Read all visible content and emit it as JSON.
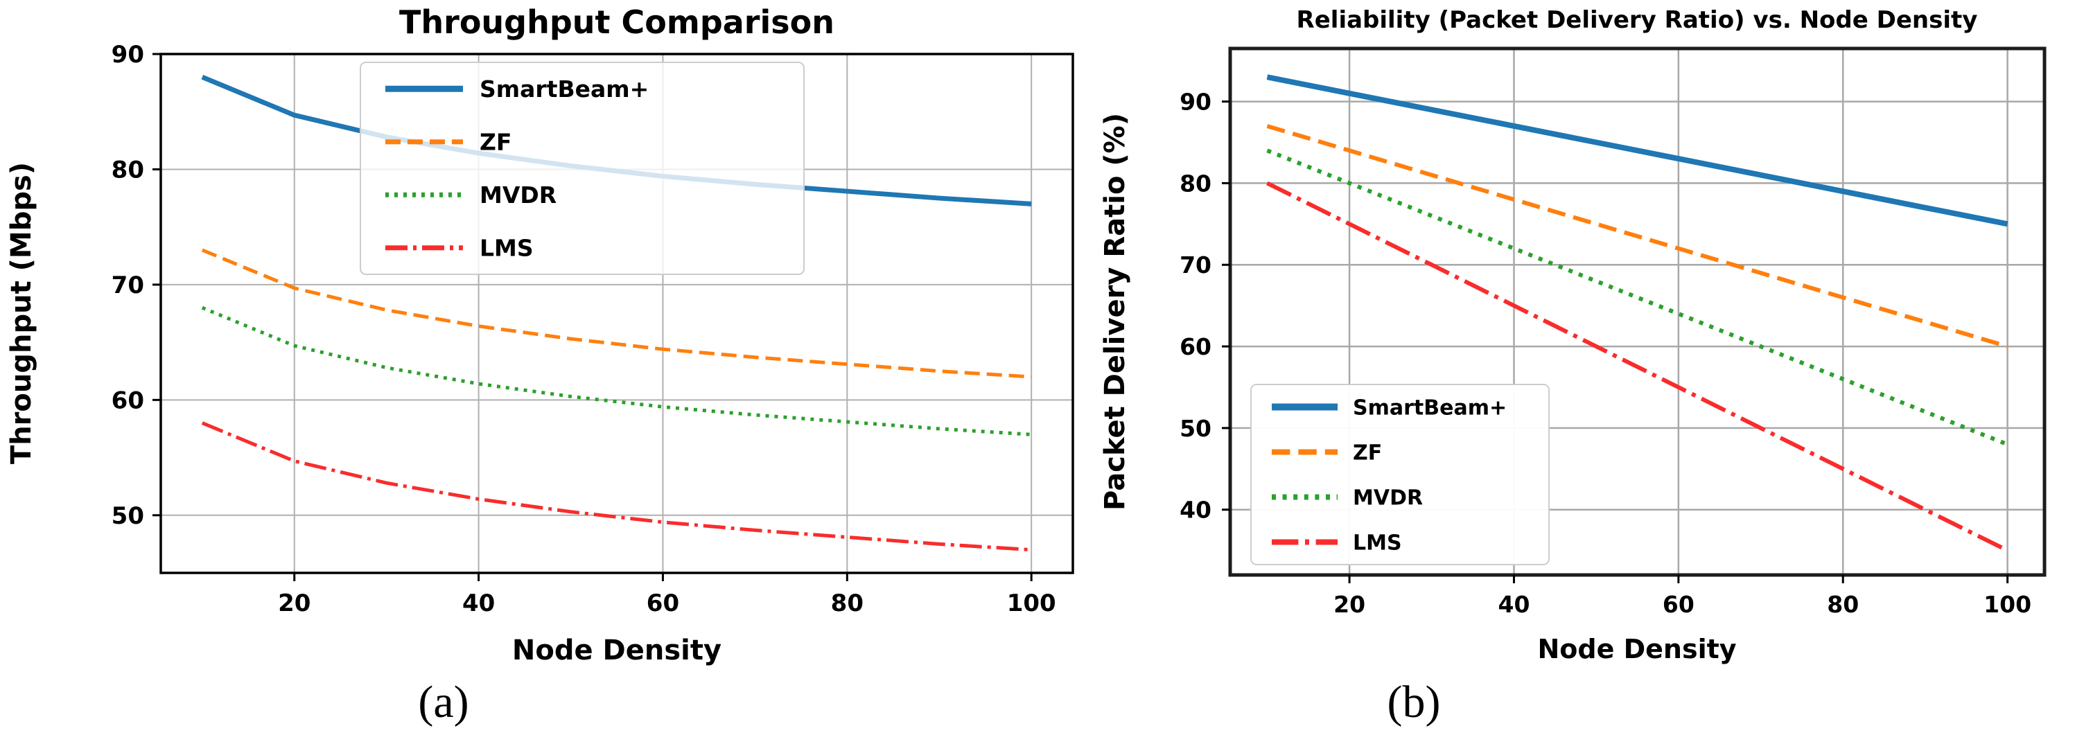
{
  "figure": {
    "background": "#ffffff",
    "captions": {
      "a": "(a)",
      "b": "(b)"
    }
  },
  "chart_data": [
    {
      "id": "throughput",
      "type": "line",
      "title": "Throughput Comparison",
      "xlabel": "Node Density",
      "ylabel": "Throughput (Mbps)",
      "caption": "(a)",
      "x": [
        10,
        20,
        30,
        40,
        50,
        60,
        70,
        80,
        90,
        100
      ],
      "xlim": [
        5.5,
        104.5
      ],
      "ylim": [
        45,
        90
      ],
      "xticks": [
        20,
        40,
        60,
        80,
        100
      ],
      "yticks": [
        50,
        60,
        70,
        80,
        90
      ],
      "grid": true,
      "grid_color": "#b0b0b0",
      "legend_position": "upper-center",
      "legend_alpha": 0.8,
      "series": [
        {
          "name": "SmartBeam+",
          "color": "#1f77b4",
          "style": "solid",
          "width": 7,
          "values": [
            88.0,
            84.7,
            82.8,
            81.4,
            80.3,
            79.4,
            78.7,
            78.1,
            77.5,
            77.0
          ]
        },
        {
          "name": "ZF",
          "color": "#ff7f0e",
          "style": "dashed",
          "width": 5,
          "values": [
            73.0,
            69.7,
            67.8,
            66.4,
            65.3,
            64.4,
            63.7,
            63.1,
            62.5,
            62.0
          ]
        },
        {
          "name": "MVDR",
          "color": "#2ca02c",
          "style": "dotted",
          "width": 5,
          "values": [
            68.0,
            64.7,
            62.8,
            61.4,
            60.3,
            59.4,
            58.7,
            58.1,
            57.5,
            57.0
          ]
        },
        {
          "name": "LMS",
          "color": "#f92c2c",
          "style": "dashdot",
          "width": 5,
          "values": [
            58.0,
            54.7,
            52.8,
            51.4,
            50.3,
            49.4,
            48.7,
            48.1,
            47.5,
            47.0
          ]
        }
      ]
    },
    {
      "id": "reliability",
      "type": "line",
      "title": "Reliability (Packet Delivery Ratio) vs. Node Density",
      "xlabel": "Node Density",
      "ylabel": "Packet Delivery Ratio (%)",
      "caption": "(b)",
      "x": [
        10,
        20,
        30,
        40,
        50,
        60,
        70,
        80,
        90,
        100
      ],
      "xlim": [
        5.5,
        104.5
      ],
      "ylim": [
        32,
        96.5
      ],
      "xticks": [
        20,
        40,
        60,
        80,
        100
      ],
      "yticks": [
        40,
        50,
        60,
        70,
        80,
        90
      ],
      "grid": true,
      "grid_color": "#a8a8a8",
      "legend_position": "lower-left",
      "legend_alpha": 0.95,
      "series": [
        {
          "name": "SmartBeam+",
          "color": "#1f77b4",
          "style": "solid",
          "width": 8,
          "values": [
            93,
            91,
            89,
            87,
            85,
            83,
            81,
            79,
            77,
            75
          ]
        },
        {
          "name": "ZF",
          "color": "#ff7f0e",
          "style": "dashed",
          "width": 6,
          "values": [
            87,
            84,
            81,
            78,
            75,
            72,
            69,
            66,
            63,
            60
          ]
        },
        {
          "name": "MVDR",
          "color": "#2ca02c",
          "style": "dotted",
          "width": 6,
          "values": [
            84,
            80,
            76,
            72,
            68,
            64,
            60,
            56,
            52,
            48
          ]
        },
        {
          "name": "LMS",
          "color": "#f92c2c",
          "style": "dashdot",
          "width": 6,
          "values": [
            80,
            75,
            70,
            65,
            60,
            55,
            50,
            45,
            40,
            35
          ]
        }
      ]
    }
  ]
}
